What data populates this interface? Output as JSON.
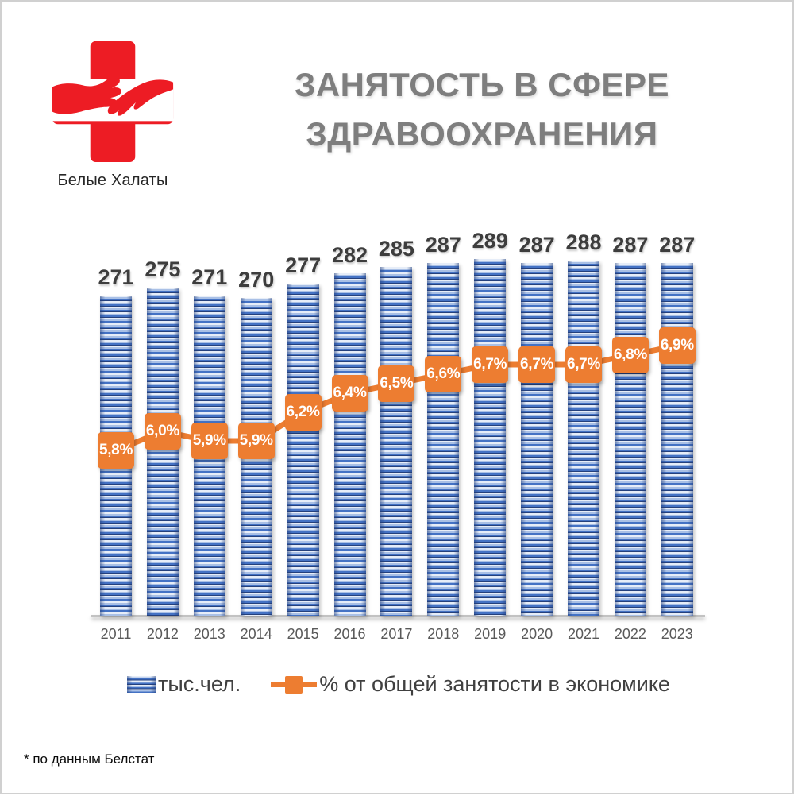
{
  "logo": {
    "caption": "Белые Халаты",
    "brand_color": "#ed1c24"
  },
  "title": {
    "line1": "ЗАНЯТОСТЬ В СФЕРЕ",
    "line2": "ЗДРАВООХРАНЕНИЯ"
  },
  "chart_data": {
    "type": "bar",
    "title": "Занятость в сфере здравоохранения",
    "categories": [
      "2011",
      "2012",
      "2013",
      "2014",
      "2015",
      "2016",
      "2017",
      "2018",
      "2019",
      "2020",
      "2021",
      "2022",
      "2023"
    ],
    "series": [
      {
        "name": "тыс.чел.",
        "type": "bar",
        "color": "#4472c4",
        "values": [
          271,
          275,
          271,
          270,
          277,
          282,
          285,
          287,
          289,
          287,
          288,
          287,
          287
        ]
      },
      {
        "name": "% от общей занятости в экономике",
        "type": "line",
        "color": "#ed7d31",
        "values": [
          5.8,
          6.0,
          5.9,
          5.9,
          6.2,
          6.4,
          6.5,
          6.6,
          6.7,
          6.7,
          6.7,
          6.8,
          6.9
        ],
        "point_labels": [
          "5,8%",
          "6,0%",
          "5,9%",
          "5,9%",
          "6,2%",
          "6,4%",
          "6,5%",
          "6,6%",
          "6,7%",
          "6,7%",
          "6,7%",
          "6,8%",
          "6,9%"
        ]
      }
    ],
    "value_labels_shown": true,
    "grid": false,
    "legend_position": "bottom",
    "xlabel": "",
    "ylabel": ""
  },
  "footnote": "* по данным Белстат",
  "colors": {
    "bar_blue": "#4472c4",
    "line_orange": "#ed7d31",
    "title_gray": "#7e7e7e",
    "axis_gray": "#c2c2c2",
    "brand_red": "#ed1c24"
  }
}
